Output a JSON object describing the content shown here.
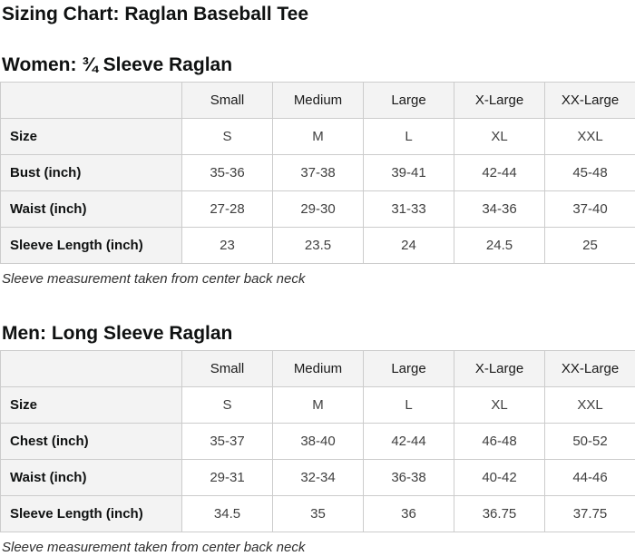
{
  "page": {
    "title": "Sizing Chart: Raglan Baseball Tee"
  },
  "colors": {
    "header_cell_bg": "#f3f3f3",
    "table_border": "#cccccc",
    "heading_text": "#0f1111",
    "value_text": "#3f3f3f",
    "page_bg": "#ffffff"
  },
  "sections": [
    {
      "heading": "Women: ¾ Sleeve Raglan",
      "table": {
        "column_headers": [
          "",
          "Small",
          "Medium",
          "Large",
          "X-Large",
          "XX-Large"
        ],
        "rows": [
          {
            "label": "Size",
            "values": [
              "S",
              "M",
              "L",
              "XL",
              "XXL"
            ]
          },
          {
            "label": "Bust (inch)",
            "values": [
              "35-36",
              "37-38",
              "39-41",
              "42-44",
              "45-48"
            ]
          },
          {
            "label": "Waist (inch)",
            "values": [
              "27-28",
              "29-30",
              "31-33",
              "34-36",
              "37-40"
            ]
          },
          {
            "label": "Sleeve Length (inch)",
            "values": [
              "23",
              "23.5",
              "24",
              "24.5",
              "25"
            ]
          }
        ]
      },
      "note": "Sleeve measurement taken from center back neck"
    },
    {
      "heading": "Men: Long Sleeve Raglan",
      "table": {
        "column_headers": [
          "",
          "Small",
          "Medium",
          "Large",
          "X-Large",
          "XX-Large"
        ],
        "rows": [
          {
            "label": "Size",
            "values": [
              "S",
              "M",
              "L",
              "XL",
              "XXL"
            ]
          },
          {
            "label": "Chest (inch)",
            "values": [
              "35-37",
              "38-40",
              "42-44",
              "46-48",
              "50-52"
            ]
          },
          {
            "label": "Waist (inch)",
            "values": [
              "29-31",
              "32-34",
              "36-38",
              "40-42",
              "44-46"
            ]
          },
          {
            "label": "Sleeve Length (inch)",
            "values": [
              "34.5",
              "35",
              "36",
              "36.75",
              "37.75"
            ]
          }
        ]
      },
      "note": "Sleeve measurement taken from center back neck"
    }
  ]
}
